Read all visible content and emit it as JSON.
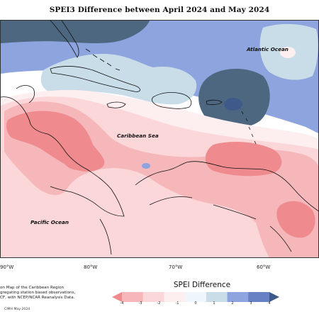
{
  "title": "SPEI3 Difference between April 2024 and May 2024",
  "map_labels": {
    "atlantic": "Atlantic Ocean",
    "caribbean": "Caribbean Sea",
    "pacific": "Pacific Ocean"
  },
  "longitude_ticks": [
    "90°W",
    "80°W",
    "70°W",
    "60°W"
  ],
  "caption_lines": [
    "on Map of the Caribbean Region",
    "gregating station based observations,",
    "CF, with NCEP/NCAR Reanalysis Data."
  ],
  "credit": "CIMH May-2024",
  "legend": {
    "title": "SPEI Difference",
    "ticks": [
      "-4",
      "-3",
      "-2",
      "-1",
      "0",
      "1",
      "2",
      "3",
      "4"
    ],
    "colors": [
      "#ef8a8e",
      "#f6b7ba",
      "#fbd7da",
      "#fdeef0",
      "#eef5fb",
      "#c9dde9",
      "#8ea4de",
      "#6880c4",
      "#3f5a8a"
    ]
  },
  "colors": {
    "blue_dark": "#4d6781",
    "blue_mid": "#8ea4de",
    "blue_light": "#c9dde9",
    "pink_light": "#fbd7da",
    "pink_mid": "#f6b7ba",
    "red_mid": "#ef8a8e"
  }
}
